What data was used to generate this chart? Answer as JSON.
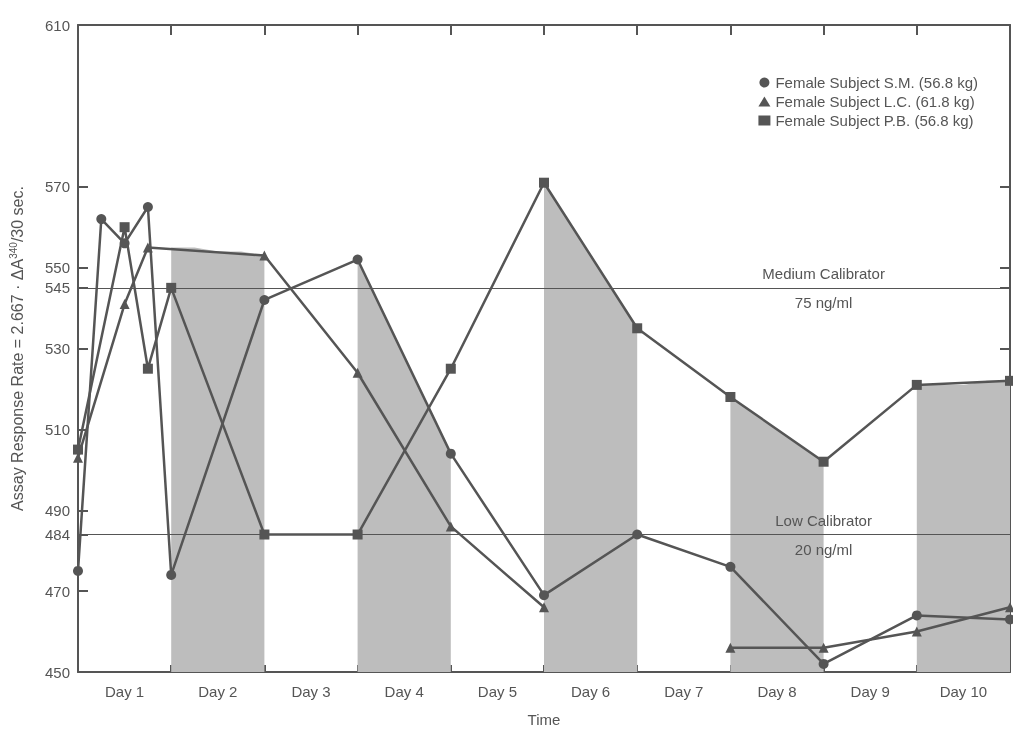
{
  "chart_data": {
    "type": "line",
    "xlabel": "Time",
    "ylabel": "Assay Response Rate = 2.667 · ΔA$^{340}$/30 sec.",
    "categories": [
      null,
      null,
      "Day 1",
      null,
      null,
      null,
      "Day 2",
      null,
      null,
      null,
      "Day 3",
      null,
      null,
      null,
      "Day 4",
      null,
      null,
      null,
      "Day 5",
      null,
      null,
      null,
      "Day 6",
      null,
      null,
      null,
      "Day 7",
      null,
      null,
      null,
      "Day 8",
      null,
      null,
      null,
      "Day 9",
      null,
      null,
      null,
      "Day 10",
      null,
      null
    ],
    "ylim": [
      450,
      610
    ],
    "yticks": [
      450,
      470,
      484,
      490,
      510,
      530,
      545,
      550,
      570,
      610
    ],
    "series": [
      {
        "type": "area",
        "color": "#bdbdbd",
        "marker": "none",
        "values": [
          null,
          null,
          null,
          null,
          555,
          555,
          554,
          554,
          553,
          null,
          null,
          null,
          552,
          540,
          528,
          516,
          504,
          null,
          null,
          null,
          571,
          562,
          553,
          544,
          535,
          null,
          null,
          null,
          518,
          514,
          510,
          506,
          502,
          null,
          null,
          null,
          521,
          521,
          521,
          522,
          522
        ]
      },
      {
        "name": "Female Subject S.M. (56.8 kg)",
        "color": "#555555",
        "marker": "circle",
        "values": [
          475,
          562,
          556,
          565,
          474,
          null,
          null,
          null,
          542,
          null,
          null,
          null,
          552,
          null,
          null,
          null,
          504,
          null,
          null,
          null,
          469,
          null,
          null,
          null,
          484,
          null,
          null,
          null,
          476,
          null,
          null,
          null,
          452,
          null,
          null,
          null,
          464,
          null,
          null,
          null,
          463
        ]
      },
      {
        "name": "Female Subject L.C. (61.8 kg)",
        "color": "#555555",
        "marker": "triangle",
        "values": [
          503,
          null,
          541,
          555,
          null,
          null,
          null,
          null,
          553,
          null,
          null,
          null,
          524,
          null,
          null,
          null,
          486,
          null,
          null,
          null,
          466,
          null,
          null,
          null,
          null,
          null,
          null,
          null,
          null,
          null,
          null,
          null,
          null,
          null,
          null,
          null,
          null,
          null,
          null,
          null,
          null
        ]
      },
      {
        "color": "#555555",
        "marker": "triangle",
        "values": [
          null,
          null,
          null,
          null,
          null,
          null,
          null,
          null,
          null,
          null,
          null,
          null,
          null,
          null,
          null,
          null,
          null,
          null,
          null,
          null,
          null,
          null,
          null,
          null,
          null,
          null,
          null,
          null,
          456,
          null,
          null,
          null,
          456,
          null,
          null,
          null,
          460,
          null,
          null,
          null,
          466
        ]
      },
      {
        "name": "Female Subject P.B. (56.8 kg)",
        "color": "#555555",
        "marker": "square",
        "values": [
          505,
          null,
          560,
          525,
          545,
          null,
          null,
          null,
          484,
          null,
          null,
          null,
          484,
          null,
          null,
          null,
          525,
          null,
          null,
          null,
          571,
          null,
          null,
          null,
          535,
          null,
          null,
          null,
          518,
          null,
          null,
          null,
          502,
          null,
          null,
          null,
          521,
          null,
          null,
          null,
          522
        ]
      }
    ],
    "ref_lines": [
      {
        "axis": "y",
        "value": 545,
        "label": "Medium Calibrator\n75 ng/ml",
        "color": "#555555"
      },
      {
        "axis": "y",
        "value": 484,
        "label": "Low Calibrator\n20 ng/ml",
        "color": "#555555"
      }
    ],
    "legend": "top right",
    "grid": false
  }
}
